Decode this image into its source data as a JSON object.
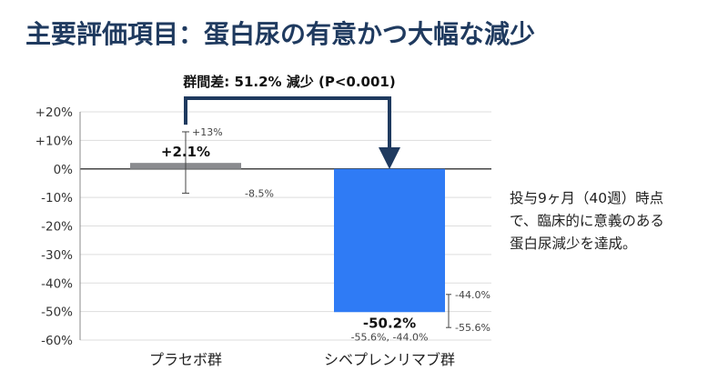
{
  "slide": {
    "title": "主要評価項目：蛋白尿の有意かつ大幅な減少",
    "note_lines": [
      "投与9ヶ月（40週）時点",
      "で、臨床的に意義のある",
      "蛋白尿減少を達成。"
    ]
  },
  "colors": {
    "title": "#1f3a5f",
    "placebo_bar": "#8a8b8f",
    "treatment_bar": "#2f7bf5",
    "arrow": "#1f3a5f"
  },
  "chart_data": {
    "type": "bar",
    "categories": [
      "プラセボ群",
      "シベプレンリマブ群"
    ],
    "values": [
      2.1,
      -50.2
    ],
    "value_labels": [
      "+2.1%",
      "-50.2%"
    ],
    "error_bars": [
      {
        "upper": 13,
        "lower": -8.5,
        "upper_label": "+13%",
        "lower_label": "-8.5%",
        "ci_text": ""
      },
      {
        "upper": -44.0,
        "lower": -55.6,
        "upper_label": "-44.0%",
        "lower_label": "-55.6%",
        "ci_text": "-55.6%, -44.0%"
      }
    ],
    "ylim": [
      -60,
      20
    ],
    "ytick_values": [
      20,
      10,
      0,
      -10,
      -20,
      -30,
      -40,
      -50,
      -60
    ],
    "ytick_labels": [
      "+20%",
      "+10%",
      "0%",
      "-10%",
      "-20%",
      "-30%",
      "-40%",
      "-50%",
      "-60%"
    ],
    "grid": true,
    "bar_colors": [
      "#8a8b8f",
      "#2f7bf5"
    ],
    "annotation": "群間差: 51.2% 減少 (P<0.001)"
  }
}
